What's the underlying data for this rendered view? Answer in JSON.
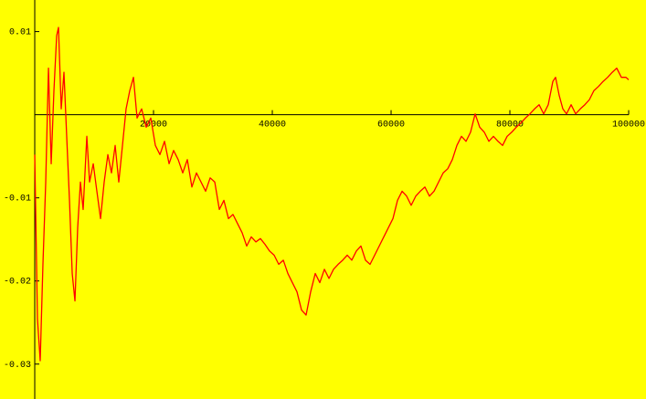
{
  "chart_data": {
    "type": "line",
    "background": "#ffff00",
    "color": "#ff0000",
    "xlim": [
      -5850,
      102920
    ],
    "ylim": [
      -0.0342,
      0.0138
    ],
    "xticks": [
      20000,
      40000,
      60000,
      80000,
      100000
    ],
    "yticks": [
      0.01,
      -0.01,
      -0.02,
      -0.03
    ],
    "x": [
      0,
      460,
      920,
      1380,
      1850,
      2310,
      2770,
      3230,
      3690,
      4000,
      4460,
      4920,
      5380,
      5850,
      6310,
      6770,
      7230,
      7690,
      8150,
      8770,
      9230,
      9850,
      10460,
      11080,
      11690,
      12310,
      12920,
      13540,
      14150,
      14770,
      15380,
      16000,
      16620,
      17230,
      18000,
      18770,
      19540,
      20310,
      21080,
      21850,
      22620,
      23380,
      24150,
      24920,
      25690,
      26460,
      27230,
      28000,
      28770,
      29540,
      30310,
      31080,
      31850,
      32620,
      33380,
      34150,
      34920,
      35690,
      36460,
      37230,
      38000,
      38770,
      39540,
      40310,
      41080,
      41850,
      42620,
      43380,
      44150,
      44920,
      45690,
      46460,
      47230,
      48000,
      48770,
      49540,
      50310,
      51080,
      51850,
      52620,
      53380,
      54150,
      54920,
      55690,
      56460,
      57230,
      58000,
      58770,
      59540,
      60310,
      61080,
      61850,
      62620,
      63380,
      64150,
      64920,
      65690,
      66460,
      67230,
      68000,
      68770,
      69540,
      70310,
      71080,
      71850,
      72620,
      73380,
      74150,
      74920,
      75690,
      76460,
      77230,
      78000,
      78770,
      79540,
      80310,
      81080,
      81850,
      82620,
      83380,
      84150,
      84920,
      85690,
      86460,
      87230,
      87690,
      88310,
      88920,
      89540,
      90310,
      91080,
      91850,
      92620,
      93380,
      94150,
      94920,
      95690,
      96460,
      97230,
      98000,
      98770,
      99540,
      100000
    ],
    "values": [
      -0.0048,
      -0.0246,
      -0.0296,
      -0.018,
      -0.0081,
      0.0056,
      -0.0059,
      0.0029,
      0.0095,
      0.0105,
      0.0007,
      0.0051,
      -0.0026,
      -0.0103,
      -0.0191,
      -0.0224,
      -0.0136,
      -0.0081,
      -0.0114,
      -0.0026,
      -0.0081,
      -0.0059,
      -0.0092,
      -0.0125,
      -0.0081,
      -0.0048,
      -0.007,
      -0.0037,
      -0.0081,
      -0.0037,
      0.0007,
      0.0029,
      0.0045,
      -0.0004,
      0.0007,
      -0.0015,
      -0.0004,
      -0.0037,
      -0.0048,
      -0.0032,
      -0.0059,
      -0.0043,
      -0.0054,
      -0.007,
      -0.0054,
      -0.0087,
      -0.007,
      -0.0081,
      -0.0092,
      -0.0076,
      -0.0081,
      -0.0114,
      -0.0103,
      -0.0125,
      -0.012,
      -0.0131,
      -0.0142,
      -0.0158,
      -0.0147,
      -0.0153,
      -0.0149,
      -0.0156,
      -0.0164,
      -0.0169,
      -0.018,
      -0.0175,
      -0.0191,
      -0.0202,
      -0.0213,
      -0.0235,
      -0.0241,
      -0.0213,
      -0.0191,
      -0.0202,
      -0.0186,
      -0.0197,
      -0.0186,
      -0.018,
      -0.0175,
      -0.0169,
      -0.0175,
      -0.0164,
      -0.0158,
      -0.0175,
      -0.018,
      -0.0169,
      -0.0158,
      -0.0147,
      -0.0136,
      -0.0125,
      -0.0103,
      -0.0092,
      -0.0098,
      -0.0109,
      -0.0098,
      -0.0092,
      -0.0087,
      -0.0098,
      -0.0092,
      -0.0081,
      -0.007,
      -0.0065,
      -0.0054,
      -0.0037,
      -0.0026,
      -0.0032,
      -0.0021,
      0.0001,
      -0.0015,
      -0.0021,
      -0.0032,
      -0.0026,
      -0.0032,
      -0.0037,
      -0.0026,
      -0.0021,
      -0.0015,
      -0.001,
      -0.0004,
      0.0001,
      0.0007,
      0.0012,
      0.0001,
      0.0012,
      0.004,
      0.0045,
      0.0023,
      0.0007,
      0.0001,
      0.0012,
      0.0001,
      0.0007,
      0.0012,
      0.0018,
      0.0029,
      0.0034,
      0.004,
      0.0045,
      0.0051,
      0.0056,
      0.0045,
      0.0045,
      0.0042
    ]
  }
}
